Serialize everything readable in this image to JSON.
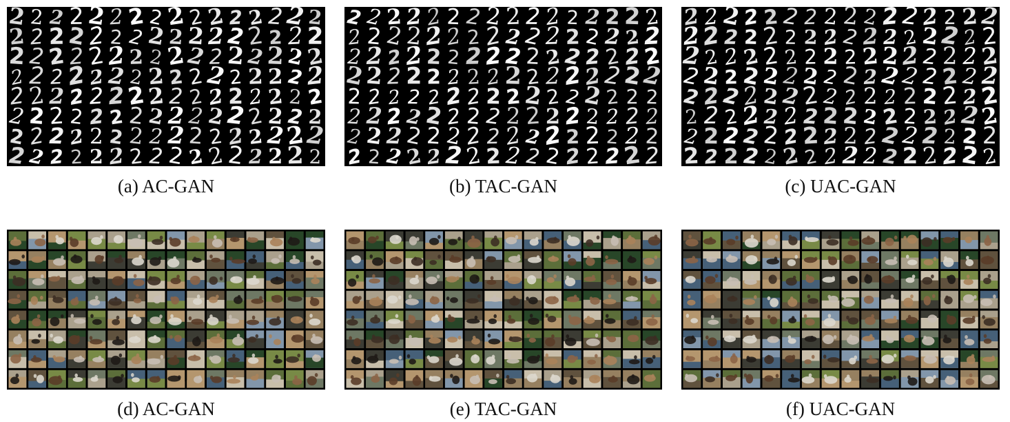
{
  "figure": {
    "panels": [
      {
        "caption": "(a) AC-GAN",
        "kind": "mnist-digits",
        "glyph": "2",
        "rows": 8,
        "cols": 16
      },
      {
        "caption": "(b) TAC-GAN",
        "kind": "mnist-digits",
        "glyph": "2",
        "rows": 8,
        "cols": 16
      },
      {
        "caption": "(c) UAC-GAN",
        "kind": "mnist-digits",
        "glyph": "2",
        "rows": 8,
        "cols": 16
      },
      {
        "caption": "(d) AC-GAN",
        "kind": "cifar-horse-images",
        "rows": 8,
        "cols": 16
      },
      {
        "caption": "(e) TAC-GAN",
        "kind": "cifar-horse-images",
        "rows": 8,
        "cols": 16
      },
      {
        "caption": "(f) UAC-GAN",
        "kind": "cifar-horse-images",
        "rows": 8,
        "cols": 16
      }
    ]
  }
}
